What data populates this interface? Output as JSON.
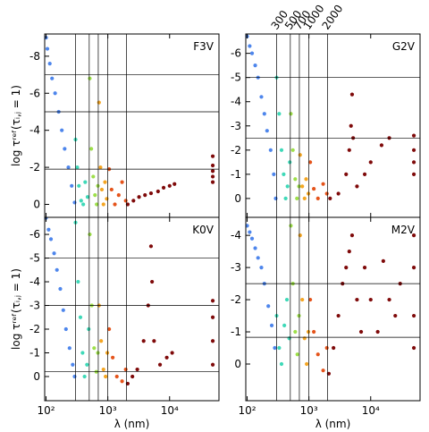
{
  "chart_data": [
    {
      "type": "scatter",
      "title": "F3V",
      "ylabel": "log τʳᵉᶠ(τᵢ,ⱼ = 1)",
      "log_x": true,
      "show_xticklabels": false,
      "xlim": [
        95,
        63000
      ],
      "xticks": [
        {
          "value": 100,
          "label": "10²"
        },
        {
          "value": 1000,
          "label": "10³"
        },
        {
          "value": 10000,
          "label": "10⁴"
        }
      ],
      "ylim": [
        0.7,
        -9.2
      ],
      "yticks": [
        -8,
        -6,
        -4,
        -2,
        0
      ],
      "vlines": [
        300,
        500,
        700,
        1000,
        2000
      ],
      "hlines": [
        -7,
        -5,
        -1.9
      ],
      "series": [
        {
          "color": "#4e86ec",
          "x": [
            100,
            105,
            115,
            125,
            140,
            160,
            180,
            200,
            230,
            260,
            290
          ],
          "values": [
            -9,
            -8.4,
            -7.6,
            -6.8,
            -6,
            -5,
            -4,
            -3,
            -2,
            -1,
            -0.1
          ]
        },
        {
          "color": "#3fd9b8",
          "x": [
            300,
            320,
            340,
            370,
            400,
            430,
            470
          ],
          "values": [
            -3.5,
            -2,
            -1,
            -0.2,
            0,
            -1.2,
            -0.4
          ]
        },
        {
          "color": "#9ee04a",
          "x": [
            510,
            540,
            580,
            620,
            660,
            690
          ],
          "values": [
            -6.8,
            -3,
            -1.5,
            -0.5,
            0,
            -1
          ]
        },
        {
          "color": "#f5a623",
          "x": [
            720,
            760,
            800,
            850,
            900,
            960
          ],
          "values": [
            -5.5,
            -2,
            -0.8,
            0,
            -1.2,
            -0.3
          ]
        },
        {
          "color": "#e5541b",
          "x": [
            1050,
            1150,
            1300,
            1500,
            1700,
            1950
          ],
          "values": [
            -1.9,
            -0.8,
            0,
            -0.5,
            -1.2,
            -0.2
          ]
        },
        {
          "color": "#7f0a0a",
          "x": [
            2100,
            2600,
            3200,
            4000,
            5000,
            6500,
            8000,
            10000,
            12000,
            50000,
            50000,
            50000,
            50000,
            50000
          ],
          "values": [
            0,
            -0.2,
            -0.4,
            -0.5,
            -0.6,
            -0.7,
            -0.9,
            -1,
            -1.1,
            -1.2,
            -1.5,
            -1.8,
            -2.1,
            -2.6
          ]
        }
      ]
    },
    {
      "type": "scatter",
      "title": "G2V",
      "log_x": true,
      "show_xticklabels": false,
      "vline_labels_on_top": true,
      "xlim": [
        95,
        63000
      ],
      "xticks": [
        {
          "value": 100,
          "label": "10²"
        },
        {
          "value": 1000,
          "label": "10³"
        },
        {
          "value": 10000,
          "label": "10⁴"
        }
      ],
      "ylim": [
        0.78,
        -6.8
      ],
      "yticks": [
        -6,
        -5,
        -4,
        -3,
        -2,
        -1,
        0
      ],
      "vlines": [
        300,
        500,
        700,
        1000,
        2000
      ],
      "hlines": [
        -5,
        -2.5
      ],
      "series": [
        {
          "color": "#4e86ec",
          "x": [
            100,
            110,
            120,
            135,
            150,
            170,
            190,
            210,
            240,
            270,
            290
          ],
          "values": [
            -6.7,
            -6.3,
            -6,
            -5.5,
            -5,
            -4.2,
            -3.5,
            -2.8,
            -2,
            -1,
            0
          ]
        },
        {
          "color": "#3fd9b8",
          "x": [
            300,
            330,
            360,
            390,
            420,
            450,
            490
          ],
          "values": [
            -5,
            -3.5,
            -2,
            -1,
            0,
            -0.5,
            -1.5
          ]
        },
        {
          "color": "#9ee04a",
          "x": [
            510,
            550,
            600,
            640,
            690
          ],
          "values": [
            -3.5,
            -2,
            -0.8,
            0,
            -0.5
          ]
        },
        {
          "color": "#f5a623",
          "x": [
            720,
            780,
            850,
            900,
            980
          ],
          "values": [
            -1.8,
            -0.5,
            0,
            -0.8,
            -0.2
          ]
        },
        {
          "color": "#e5541b",
          "x": [
            1050,
            1200,
            1400,
            1700,
            1950
          ],
          "values": [
            -1.5,
            -0.4,
            0,
            -0.6,
            -0.2
          ]
        },
        {
          "color": "#7f0a0a",
          "x": [
            2200,
            3000,
            4000,
            4500,
            4800,
            5000,
            5200,
            6000,
            8000,
            10000,
            15000,
            20000,
            50000,
            50000,
            50000,
            50000
          ],
          "values": [
            0,
            -0.2,
            -1,
            -2,
            -3,
            -4.3,
            -2.5,
            -0.5,
            -1,
            -1.5,
            -2.2,
            -2.5,
            -1,
            -1.5,
            -2,
            -2.6
          ]
        }
      ]
    },
    {
      "type": "scatter",
      "title": "K0V",
      "ylabel": "log τʳᵉᶠ(τᵢ,ⱼ = 1)",
      "xlabel": "λ (nm)",
      "log_x": true,
      "show_xticklabels": true,
      "xlim": [
        95,
        63000
      ],
      "xticks": [
        {
          "value": 100,
          "label": "10²"
        },
        {
          "value": 1000,
          "label": "10³"
        },
        {
          "value": 10000,
          "label": "10⁴"
        }
      ],
      "ylim": [
        1.02,
        -6.72
      ],
      "yticks": [
        -6,
        -5,
        -4,
        -3,
        -2,
        -1,
        0
      ],
      "vlines": [
        300,
        500,
        700,
        1000,
        2000
      ],
      "hlines": [
        -5,
        -3,
        -0.2
      ],
      "series": [
        {
          "color": "#4e86ec",
          "x": [
            100,
            110,
            120,
            135,
            150,
            170,
            190,
            210,
            240,
            270,
            290
          ],
          "values": [
            -6.7,
            -6.2,
            -5.8,
            -5.2,
            -4.5,
            -3.7,
            -2.8,
            -2,
            -1.2,
            -0.5,
            0
          ]
        },
        {
          "color": "#3fd9b8",
          "x": [
            300,
            330,
            360,
            390,
            420,
            460,
            490
          ],
          "values": [
            -6.5,
            -4,
            -2.5,
            -1,
            0,
            -0.5,
            -2
          ]
        },
        {
          "color": "#9ee04a",
          "x": [
            510,
            550,
            600,
            650,
            690
          ],
          "values": [
            -6,
            -3,
            -1.2,
            -0.2,
            -1
          ]
        },
        {
          "color": "#f5a623",
          "x": [
            720,
            780,
            850,
            920,
            980
          ],
          "values": [
            -3,
            -1.5,
            -0.3,
            0,
            -1
          ]
        },
        {
          "color": "#e5541b",
          "x": [
            1050,
            1200,
            1400,
            1700,
            1950
          ],
          "values": [
            -2,
            -0.8,
            0,
            0.2,
            -0.3
          ]
        },
        {
          "color": "#7f0a0a",
          "x": [
            2100,
            2500,
            3000,
            3800,
            4500,
            5000,
            5200,
            5600,
            7000,
            9000,
            11000,
            50000,
            50000,
            50000,
            50000
          ],
          "values": [
            0.3,
            0,
            -0.3,
            -1.5,
            -3,
            -5.5,
            -4,
            -1.5,
            -0.5,
            -0.8,
            -1,
            -0.5,
            -1.5,
            -2.5,
            -3.2
          ]
        }
      ]
    },
    {
      "type": "scatter",
      "title": "M2V",
      "xlabel": "λ (nm)",
      "log_x": true,
      "show_xticklabels": true,
      "xlim": [
        95,
        63000
      ],
      "xticks": [
        {
          "value": 100,
          "label": "10²"
        },
        {
          "value": 1000,
          "label": "10³"
        },
        {
          "value": 10000,
          "label": "10⁴"
        }
      ],
      "ylim": [
        1.14,
        -4.56
      ],
      "yticks": [
        -4,
        -3,
        -2,
        -1,
        0
      ],
      "vlines": [
        300,
        500,
        700,
        1000,
        2000
      ],
      "hlines": [
        -2.5,
        -0.83
      ],
      "series": [
        {
          "color": "#4e86ec",
          "x": [
            100,
            110,
            120,
            135,
            150,
            170,
            190,
            220,
            250,
            280
          ],
          "values": [
            -4.3,
            -4.1,
            -3.9,
            -3.6,
            -3.3,
            -3,
            -2.5,
            -1.8,
            -1.2,
            -0.5
          ]
        },
        {
          "color": "#3fd9b8",
          "x": [
            300,
            330,
            360,
            400,
            440,
            480
          ],
          "values": [
            -1.5,
            -0.5,
            0,
            -1.2,
            -2,
            -0.8
          ]
        },
        {
          "color": "#9ee04a",
          "x": [
            510,
            550,
            600,
            650,
            690
          ],
          "values": [
            -4.3,
            -2.5,
            -1,
            -0.3,
            -1.5
          ]
        },
        {
          "color": "#f5a623",
          "x": [
            720,
            780,
            850,
            920,
            980
          ],
          "values": [
            -4,
            -2,
            -0.8,
            0,
            -1
          ]
        },
        {
          "color": "#e5541b",
          "x": [
            1050,
            1200,
            1400,
            1700,
            1950
          ],
          "values": [
            -2,
            -1,
            -0.3,
            0.2,
            -0.5
          ]
        },
        {
          "color": "#7f0a0a",
          "x": [
            2100,
            2500,
            3000,
            3500,
            4000,
            4500,
            5000,
            6000,
            7000,
            8000,
            10000,
            13000,
            16000,
            20000,
            25000,
            30000,
            50000,
            50000,
            50000,
            50000
          ],
          "values": [
            0.3,
            -0.5,
            -1.5,
            -2.5,
            -3,
            -3.5,
            -4,
            -2,
            -1,
            -3,
            -2,
            -1,
            -3.2,
            -2,
            -1.5,
            -2.5,
            -0.5,
            -1.5,
            -3,
            -4
          ]
        }
      ]
    }
  ]
}
